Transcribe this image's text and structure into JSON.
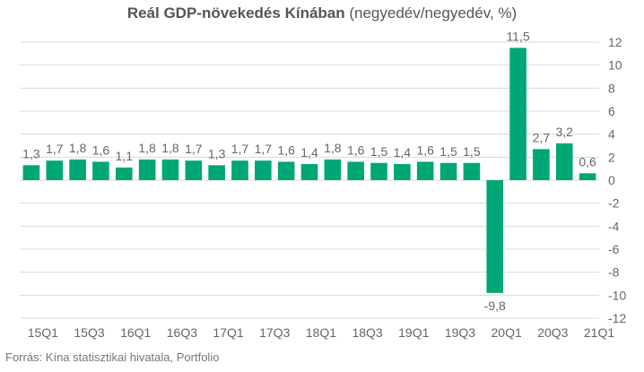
{
  "title": {
    "bold": "Reál GDP-növekedés Kínában",
    "regular": " (negyedév/negyedév, %)"
  },
  "source": "Forrás: Kína statisztikai hivatala, Portfolio",
  "colors": {
    "bar": "#00a776",
    "grid": "#d9d9d9",
    "text": "#666666"
  },
  "chart_data": {
    "type": "bar",
    "title": "Reál GDP-növekedés Kínában (negyedév/negyedév, %)",
    "xlabel": "",
    "ylabel": "",
    "ylim": [
      -12,
      12
    ],
    "yticks": [
      12,
      10,
      8,
      6,
      4,
      2,
      0,
      -2,
      -4,
      -6,
      -8,
      -10,
      -12
    ],
    "ytick_labels": [
      "12",
      "10",
      "8",
      "6",
      "4",
      "2",
      "0",
      "-2",
      "-4",
      "-6",
      "-8",
      "-10",
      "-12"
    ],
    "y_axis_position": "right",
    "grid": true,
    "categories": [
      "15Q1",
      "15Q2",
      "15Q3",
      "15Q4",
      "16Q1",
      "16Q2",
      "16Q3",
      "16Q4",
      "17Q1",
      "17Q2",
      "17Q3",
      "17Q4",
      "18Q1",
      "18Q2",
      "18Q3",
      "18Q4",
      "19Q1",
      "19Q2",
      "19Q3",
      "19Q4",
      "20Q1",
      "20Q2",
      "20Q3",
      "20Q4",
      "21Q1"
    ],
    "shown_x_labels": [
      "15Q1",
      "15Q3",
      "16Q1",
      "16Q3",
      "17Q1",
      "17Q3",
      "18Q1",
      "18Q3",
      "19Q1",
      "19Q3",
      "20Q1",
      "20Q3",
      "21Q1"
    ],
    "values": [
      1.3,
      1.7,
      1.8,
      1.6,
      1.1,
      1.8,
      1.8,
      1.7,
      1.3,
      1.7,
      1.7,
      1.6,
      1.4,
      1.8,
      1.6,
      1.5,
      1.4,
      1.6,
      1.5,
      1.5,
      -9.8,
      11.5,
      2.7,
      3.2,
      0.6
    ],
    "data_labels": [
      "1,3",
      "1,7",
      "1,8",
      "1,6",
      "1,1",
      "1,8",
      "1,8",
      "1,7",
      "1,3",
      "1,7",
      "1,7",
      "1,6",
      "1,4",
      "1,8",
      "1,6",
      "1,5",
      "1,4",
      "1,6",
      "1,5",
      "1,5",
      "-9,8",
      "11,5",
      "2,7",
      "3,2",
      "0,6"
    ]
  }
}
